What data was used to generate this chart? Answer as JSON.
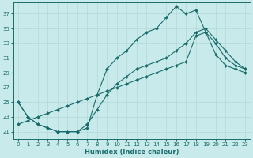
{
  "title": "",
  "xlabel": "Humidex (Indice chaleur)",
  "ylabel": "",
  "background_color": "#c8eaea",
  "line_color": "#1a6b6b",
  "grid_color": "#b0d8d8",
  "xlim": [
    -0.5,
    23.5
  ],
  "ylim": [
    20.0,
    38.5
  ],
  "yticks": [
    21,
    23,
    25,
    27,
    29,
    31,
    33,
    35,
    37
  ],
  "xticks": [
    0,
    1,
    2,
    3,
    4,
    5,
    6,
    7,
    8,
    9,
    10,
    11,
    12,
    13,
    14,
    15,
    16,
    17,
    18,
    19,
    20,
    21,
    22,
    23
  ],
  "line1_x": [
    0,
    1,
    2,
    3,
    4,
    5,
    6,
    7,
    8,
    9,
    10,
    11,
    12,
    13,
    14,
    15,
    16,
    17,
    18,
    19,
    20,
    21,
    22,
    23
  ],
  "line1_y": [
    25,
    23,
    22,
    21.5,
    21,
    21,
    21,
    21.5,
    26,
    29.5,
    31,
    32,
    33.5,
    34.5,
    35,
    36.5,
    38,
    37,
    37.5,
    34.5,
    33,
    31,
    30,
    29.5
  ],
  "line2_x": [
    0,
    1,
    2,
    3,
    4,
    5,
    6,
    7,
    8,
    9,
    10,
    11,
    12,
    13,
    14,
    15,
    16,
    17,
    18,
    19,
    20,
    21,
    22,
    23
  ],
  "line2_y": [
    22,
    22.5,
    23,
    23.5,
    24,
    24.5,
    25,
    25.5,
    26,
    26.5,
    27,
    27.5,
    28,
    28.5,
    29,
    29.5,
    30,
    30.5,
    34,
    34.5,
    31.5,
    30,
    29.5,
    29
  ],
  "line3_x": [
    0,
    1,
    2,
    3,
    4,
    5,
    6,
    7,
    8,
    9,
    10,
    11,
    12,
    13,
    14,
    15,
    16,
    17,
    18,
    19,
    20,
    21,
    22,
    23
  ],
  "line3_y": [
    25,
    23,
    22,
    21.5,
    21,
    21,
    21,
    22,
    24,
    26,
    27.5,
    28.5,
    29.5,
    30,
    30.5,
    31,
    32,
    33,
    34.5,
    35,
    33.5,
    32,
    30.5,
    29.5
  ]
}
